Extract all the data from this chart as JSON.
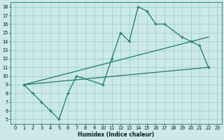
{
  "xlabel": "Humidex (Indice chaleur)",
  "bg_color": "#cce8e8",
  "grid_color": "#99cccc",
  "line_color": "#1a7a6e",
  "xlim": [
    -0.5,
    23.5
  ],
  "ylim": [
    4.5,
    18.5
  ],
  "xticks": [
    0,
    1,
    2,
    3,
    4,
    5,
    6,
    7,
    8,
    9,
    10,
    11,
    12,
    13,
    14,
    15,
    16,
    17,
    18,
    19,
    20,
    21,
    22,
    23
  ],
  "yticks": [
    5,
    6,
    7,
    8,
    9,
    10,
    11,
    12,
    13,
    14,
    15,
    16,
    17,
    18
  ],
  "line1_x": [
    1,
    2,
    3,
    4,
    5,
    6,
    7,
    10,
    11,
    12,
    13,
    14,
    15,
    16,
    17,
    19,
    20,
    21,
    22
  ],
  "line1_y": [
    9,
    8,
    7,
    6,
    5,
    8,
    10,
    9,
    12,
    15,
    14,
    18,
    17.5,
    16,
    16,
    14.5,
    14,
    13.5,
    11
  ],
  "line2_x": [
    1,
    22
  ],
  "line2_y": [
    9,
    11
  ],
  "line3_x": [
    1,
    22
  ],
  "line3_y": [
    9,
    14.5
  ],
  "marker_size": 3.5,
  "linewidth": 0.9,
  "tick_fontsize": 4.8,
  "xlabel_fontsize": 5.5
}
